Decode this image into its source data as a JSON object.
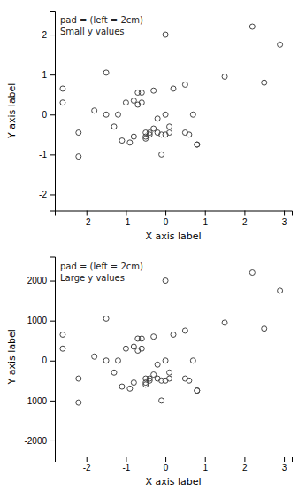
{
  "chart_data": [
    {
      "type": "scatter",
      "xlabel": "X axis label",
      "ylabel": "Y axis label",
      "annotation": "pad = (left = 2cm)\nSmall y values",
      "x": [
        -2.6,
        -2.6,
        -2.2,
        -2.2,
        -1.8,
        -1.5,
        -1.5,
        -1.3,
        -1.2,
        -1.1,
        -1.0,
        -0.9,
        -0.8,
        -0.8,
        -0.7,
        -0.7,
        -0.6,
        -0.6,
        -0.5,
        -0.5,
        -0.5,
        -0.4,
        -0.4,
        -0.3,
        -0.3,
        -0.2,
        -0.2,
        -0.1,
        -0.1,
        0.0,
        0.0,
        0.0,
        0.1,
        0.1,
        0.2,
        0.5,
        0.5,
        0.6,
        0.7,
        0.8,
        0.8,
        1.5,
        2.2,
        2.5,
        2.9
      ],
      "values": [
        0.65,
        0.3,
        -0.45,
        -1.05,
        0.1,
        0.0,
        1.05,
        -0.3,
        0.0,
        -0.65,
        0.3,
        -0.7,
        0.35,
        -0.55,
        0.25,
        0.55,
        0.55,
        0.3,
        -0.45,
        -0.55,
        -0.6,
        -0.5,
        -0.45,
        -0.35,
        0.6,
        -0.45,
        -0.1,
        -1.0,
        -0.5,
        -0.5,
        0.0,
        2.0,
        -0.45,
        -0.3,
        0.65,
        -0.45,
        0.75,
        -0.5,
        0.0,
        -0.75,
        -0.75,
        0.95,
        2.2,
        0.8,
        1.75
      ],
      "xlim": [
        -2.8,
        3.2
      ],
      "ylim": [
        -2.4,
        2.6
      ],
      "xticks": [
        -2,
        -1,
        0,
        1,
        2,
        3
      ],
      "yticks": [
        -2,
        -1,
        0,
        1,
        2
      ],
      "color": "#444444",
      "marker": "circle"
    },
    {
      "type": "scatter",
      "xlabel": "X axis label",
      "ylabel": "Y axis label",
      "annotation": "pad = (left = 2cm)\nLarge y values",
      "x": [
        -2.6,
        -2.6,
        -2.2,
        -2.2,
        -1.8,
        -1.5,
        -1.5,
        -1.3,
        -1.2,
        -1.1,
        -1.0,
        -0.9,
        -0.8,
        -0.8,
        -0.7,
        -0.7,
        -0.6,
        -0.6,
        -0.5,
        -0.5,
        -0.5,
        -0.4,
        -0.4,
        -0.3,
        -0.3,
        -0.2,
        -0.2,
        -0.1,
        -0.1,
        0.0,
        0.0,
        0.0,
        0.1,
        0.1,
        0.2,
        0.5,
        0.5,
        0.6,
        0.7,
        0.8,
        0.8,
        1.5,
        2.2,
        2.5,
        2.9
      ],
      "values": [
        650,
        300,
        -450,
        -1050,
        100,
        0,
        1050,
        -300,
        0,
        -650,
        300,
        -700,
        350,
        -550,
        250,
        550,
        550,
        300,
        -450,
        -550,
        -600,
        -500,
        -450,
        -350,
        600,
        -450,
        -100,
        -1000,
        -500,
        -500,
        0,
        2000,
        -450,
        -300,
        650,
        -450,
        750,
        -500,
        0,
        -750,
        -750,
        950,
        2200,
        800,
        1750
      ],
      "xlim": [
        -2.8,
        3.2
      ],
      "ylim": [
        -2400,
        2600
      ],
      "xticks": [
        -2,
        -1,
        0,
        1,
        2,
        3
      ],
      "yticks": [
        -2000,
        -1000,
        0,
        1000,
        2000
      ],
      "color": "#444444",
      "marker": "circle"
    }
  ]
}
